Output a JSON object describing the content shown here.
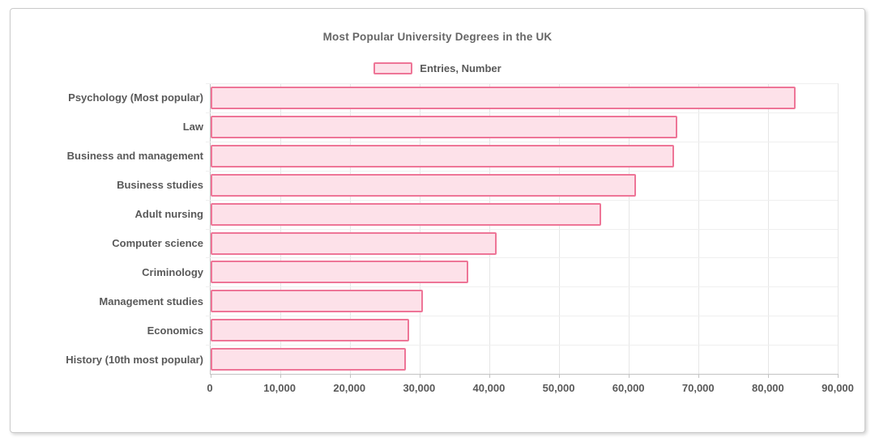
{
  "chart_data": {
    "type": "bar",
    "orientation": "horizontal",
    "title": "Most Popular University Degrees in the UK",
    "legend": {
      "label": "Entries, Number",
      "position": "top"
    },
    "categories": [
      "Psychology (Most popular)",
      "Law",
      "Business and management",
      "Business studies",
      "Adult nursing",
      "Computer science",
      "Criminology",
      "Management studies",
      "Economics",
      "History (10th most popular)"
    ],
    "values": [
      84000,
      67000,
      66500,
      61000,
      56000,
      41000,
      37000,
      30500,
      28500,
      28000
    ],
    "xlabel": "",
    "ylabel": "",
    "xlim": [
      0,
      90000
    ],
    "x_tick_step": 10000,
    "x_tick_labels": [
      "0",
      "10,000",
      "20,000",
      "30,000",
      "40,000",
      "50,000",
      "60,000",
      "70,000",
      "80,000",
      "90,000"
    ],
    "grid": true,
    "colors": {
      "bar_fill": "#fde1e9",
      "bar_border": "#ee7597",
      "gridline": "#e6e6e6",
      "axis_line": "#c3c3c3",
      "row_line": "#efefef",
      "label_text": "#595959",
      "title_text": "#666666"
    }
  }
}
